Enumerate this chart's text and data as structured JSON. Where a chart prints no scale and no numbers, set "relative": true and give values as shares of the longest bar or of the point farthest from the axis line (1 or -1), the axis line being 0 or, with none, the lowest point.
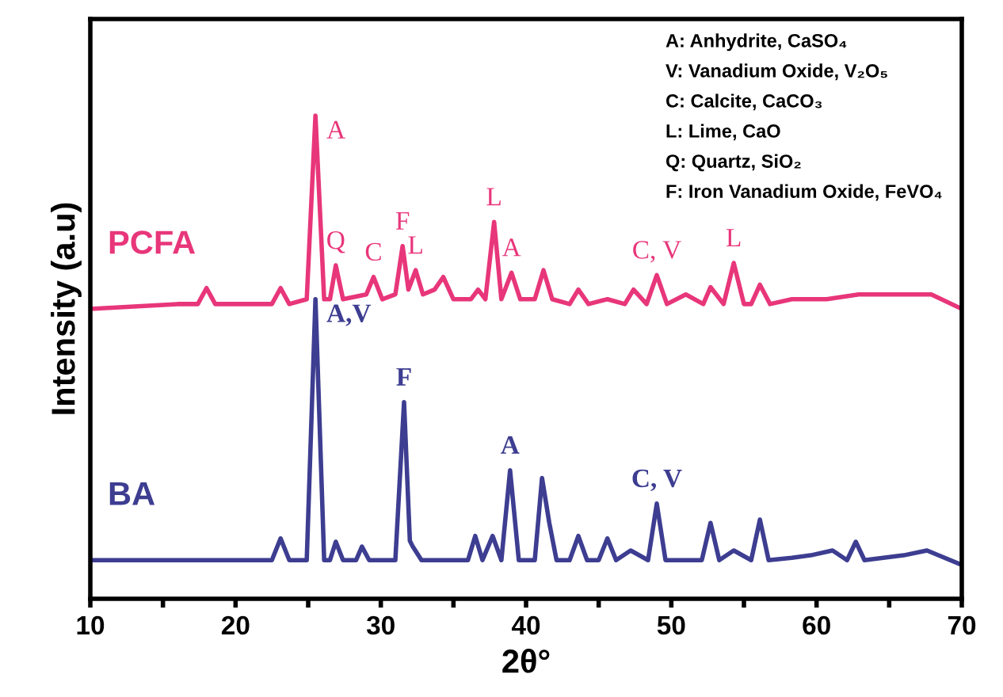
{
  "chart_data": {
    "type": "line",
    "relative": true,
    "xlabel": "2θ°",
    "ylabel": "Intensity (a.u)",
    "xlim": [
      10,
      70
    ],
    "xticks": [
      10,
      {
        "value": 15,
        "label": null
      },
      20,
      {
        "value": 25,
        "label": null
      },
      30,
      {
        "value": 35,
        "label": null
      },
      40,
      {
        "value": 45,
        "label": null
      },
      50,
      {
        "value": 55,
        "label": null
      },
      60,
      {
        "value": 65,
        "label": null
      },
      70
    ],
    "grid": false,
    "legend": false,
    "marker": "none",
    "line_style": "solid",
    "series": [
      {
        "name": "PCFA",
        "color": "#e8367a",
        "x": [
          10,
          16,
          17.4,
          18.0,
          18.6,
          20.5,
          22.5,
          23.1,
          23.7,
          24.9,
          25.5,
          26.1,
          26.5,
          26.9,
          27.4,
          29.0,
          29.5,
          30.1,
          31.0,
          31.5,
          31.9,
          32.4,
          32.9,
          33.7,
          34.3,
          35.0,
          36.2,
          36.7,
          37.2,
          37.8,
          38.3,
          39.0,
          39.6,
          40.6,
          41.2,
          41.8,
          43.0,
          43.6,
          44.3,
          45.6,
          46.8,
          47.4,
          48.3,
          49.0,
          49.7,
          51.0,
          52.2,
          52.7,
          53.6,
          54.3,
          55.0,
          55.5,
          56.1,
          56.8,
          58.3,
          60.7,
          62.9,
          64.7,
          67.9,
          70
        ],
        "values": [
          0.6,
          0.61,
          0.61,
          0.643,
          0.61,
          0.61,
          0.61,
          0.643,
          0.61,
          0.62,
          1.0,
          0.62,
          0.62,
          0.69,
          0.62,
          0.63,
          0.666,
          0.62,
          0.63,
          0.73,
          0.64,
          0.68,
          0.63,
          0.64,
          0.666,
          0.62,
          0.62,
          0.64,
          0.62,
          0.78,
          0.62,
          0.675,
          0.62,
          0.62,
          0.68,
          0.62,
          0.61,
          0.64,
          0.61,
          0.62,
          0.61,
          0.64,
          0.61,
          0.67,
          0.61,
          0.63,
          0.61,
          0.645,
          0.61,
          0.695,
          0.61,
          0.61,
          0.65,
          0.61,
          0.62,
          0.62,
          0.63,
          0.63,
          0.63,
          0.6
        ]
      },
      {
        "name": "BA",
        "color": "#3d3d91",
        "x": [
          10,
          22.5,
          23.1,
          23.7,
          24.9,
          25.5,
          26.1,
          26.5,
          26.9,
          27.4,
          28.3,
          28.7,
          29.2,
          31.0,
          31.6,
          32.0,
          32.2,
          32.8,
          36.0,
          36.5,
          37.0,
          37.7,
          38.3,
          38.9,
          39.5,
          40.6,
          41.1,
          41.6,
          42.1,
          43.0,
          43.6,
          44.2,
          45.0,
          45.6,
          46.2,
          47.2,
          48.4,
          49.0,
          49.6,
          52.1,
          52.7,
          53.3,
          54.3,
          55.5,
          56.1,
          56.7,
          58.3,
          59.6,
          61.1,
          62.1,
          62.7,
          63.3,
          66.0,
          67.6,
          70
        ],
        "values": [
          0.08,
          0.08,
          0.125,
          0.08,
          0.08,
          0.62,
          0.08,
          0.08,
          0.118,
          0.08,
          0.08,
          0.108,
          0.08,
          0.08,
          0.407,
          0.12,
          0.108,
          0.08,
          0.08,
          0.13,
          0.08,
          0.13,
          0.08,
          0.266,
          0.08,
          0.08,
          0.25,
          0.157,
          0.08,
          0.08,
          0.13,
          0.08,
          0.08,
          0.125,
          0.08,
          0.1,
          0.08,
          0.197,
          0.08,
          0.08,
          0.157,
          0.08,
          0.1,
          0.08,
          0.164,
          0.08,
          0.085,
          0.09,
          0.1,
          0.08,
          0.118,
          0.08,
          0.09,
          0.1,
          0.07
        ]
      }
    ],
    "annotations": [
      "A: Anhydrite, CaSO₄",
      "V: Vanadium Oxide, V₂O₅",
      "C: Calcite, CaCO₃",
      "L: Lime, CaO",
      "Q: Quartz, SiO₂",
      "F: Iron Vanadium Oxide, FeVO₄",
      {
        "text": "A",
        "x": 25.5,
        "y": 1.0
      },
      {
        "text": "Q",
        "x": 26.9,
        "y": 0.69
      },
      {
        "text": "C",
        "x": 29.5,
        "y": 0.666
      },
      {
        "text": "F",
        "x": 31.5,
        "y": 0.73
      },
      {
        "text": "L",
        "x": 32.4,
        "y": 0.68
      },
      {
        "text": "L",
        "x": 37.8,
        "y": 0.78
      },
      {
        "text": "A",
        "x": 39.0,
        "y": 0.675
      },
      {
        "text": "C, V",
        "x": 49.0,
        "y": 0.67
      },
      {
        "text": "L",
        "x": 54.3,
        "y": 0.695
      },
      {
        "text": "A,V",
        "x": 25.5,
        "y": 0.62
      },
      {
        "text": "F",
        "x": 31.6,
        "y": 0.407
      },
      {
        "text": "A",
        "x": 38.9,
        "y": 0.266
      },
      {
        "text": "C, V",
        "x": 49.0,
        "y": 0.197
      }
    ]
  }
}
